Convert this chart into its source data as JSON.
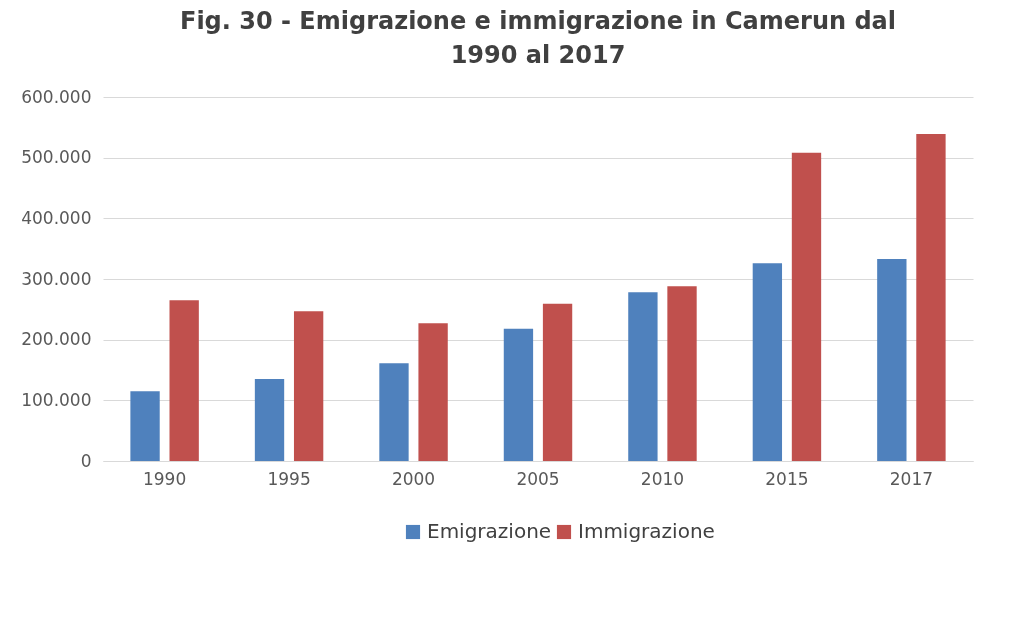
{
  "chart_data": {
    "type": "bar",
    "title": "Fig. 30 - Emigrazione e immigrazione in Camerun dal 1990 al 2017",
    "categories": [
      "1990",
      "1995",
      "2000",
      "2005",
      "2010",
      "2015",
      "2017"
    ],
    "series": [
      {
        "name": "Emigrazione",
        "color": "#4f81bd",
        "values": [
          115000,
          135000,
          161000,
          218000,
          278000,
          326000,
          333000
        ]
      },
      {
        "name": "Immigrazione",
        "color": "#c0504d",
        "values": [
          265000,
          247000,
          227000,
          259000,
          288000,
          508000,
          539000
        ]
      }
    ],
    "ylim": [
      0,
      600000
    ],
    "yticks": [
      {
        "value": 0,
        "label": "0"
      },
      {
        "value": 100000,
        "label": "100.000"
      },
      {
        "value": 200000,
        "label": "200.000"
      },
      {
        "value": 300000,
        "label": "300.000"
      },
      {
        "value": 400000,
        "label": "400.000"
      },
      {
        "value": 500000,
        "label": "500.000"
      },
      {
        "value": 600000,
        "label": "600.000"
      }
    ],
    "grid": "y",
    "legend": "bottom"
  }
}
